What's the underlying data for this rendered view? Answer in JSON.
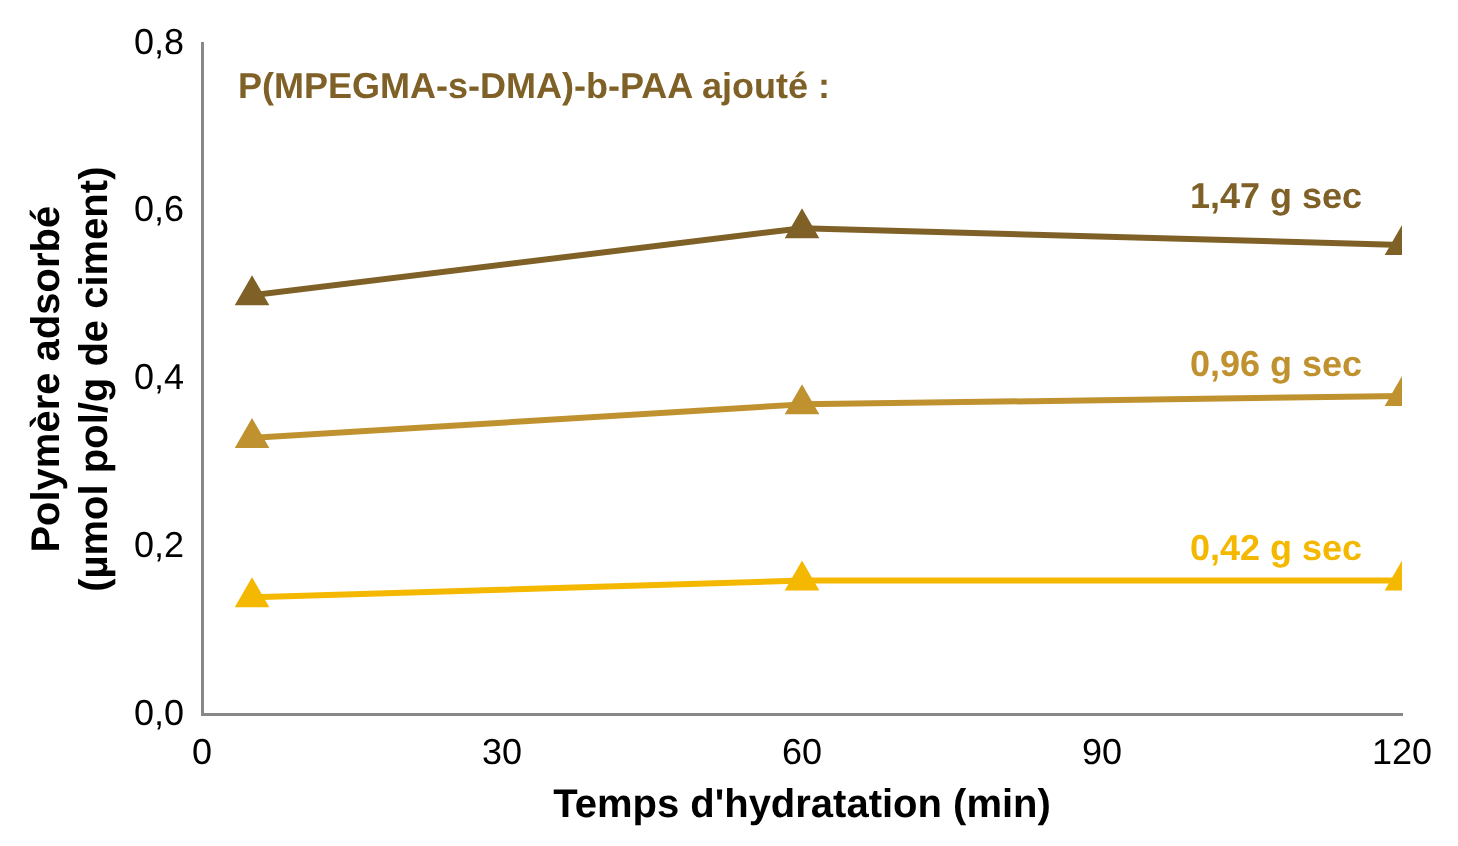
{
  "chart_data": {
    "type": "line",
    "xlabel": "Temps d'hydratation (min)",
    "ylabel": "Polymère adsorbé\n(µmol pol/g de ciment)",
    "x": [
      5,
      60,
      120
    ],
    "series": [
      {
        "name": "1,47 g sec",
        "color": "#7f6128",
        "values": [
          0.5,
          0.58,
          0.56
        ]
      },
      {
        "name": "0,96 g sec",
        "color": "#c0922f",
        "values": [
          0.33,
          0.37,
          0.38
        ]
      },
      {
        "name": "0,42 g sec",
        "color": "#f5b800",
        "values": [
          0.14,
          0.16,
          0.16
        ]
      }
    ],
    "xlim": [
      0,
      120
    ],
    "xticks": [
      0,
      30,
      60,
      90,
      120
    ],
    "ylim": [
      0,
      0.8
    ],
    "yticks": [
      {
        "value": 0,
        "label": "0,0"
      },
      {
        "value": 0.2,
        "label": "0,2"
      },
      {
        "value": 0.4,
        "label": "0,4"
      },
      {
        "value": 0.6,
        "label": "0,6"
      },
      {
        "value": 0.8,
        "label": "0,8"
      }
    ],
    "annotations": [
      "P(MPEGMA-s-DMA)-b-PAA ajouté :"
    ],
    "grid": false,
    "legend": false,
    "marker": "triangle",
    "line_style": "solid"
  }
}
